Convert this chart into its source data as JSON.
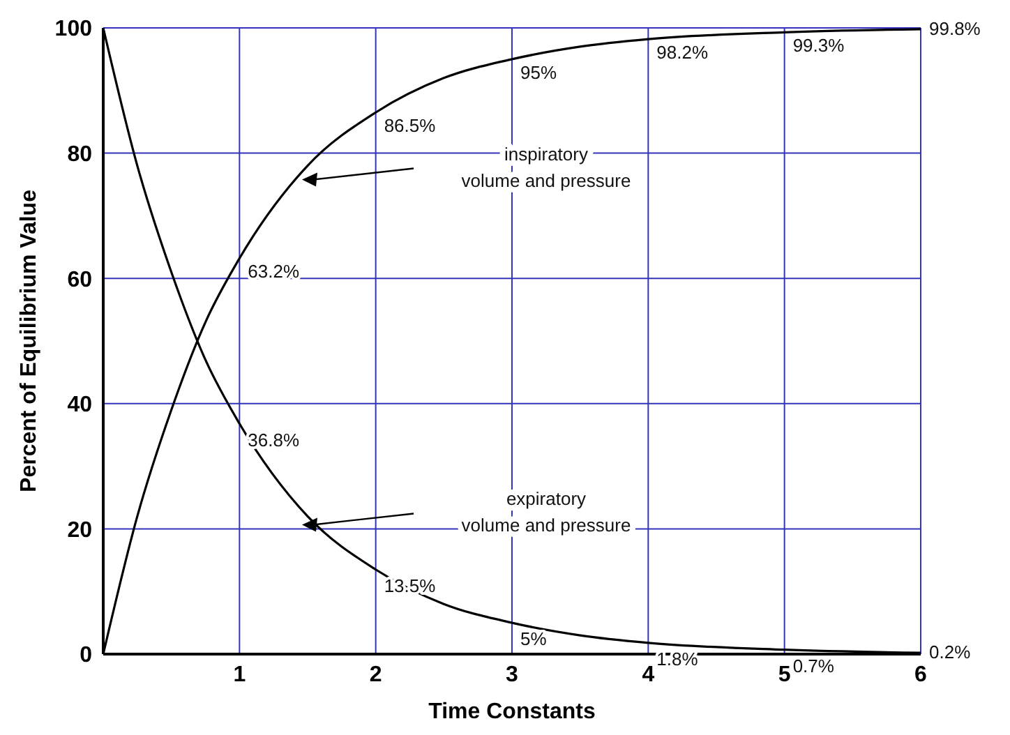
{
  "chart_data": {
    "type": "line",
    "xlabel": "Time Constants",
    "ylabel": "Percent of Equilibrium Value",
    "x": [
      0,
      0.25,
      0.5,
      0.75,
      1,
      1.5,
      2,
      2.5,
      3,
      3.5,
      4,
      5,
      6
    ],
    "series": [
      {
        "color": "#000000",
        "values": [
          0,
          22,
          39,
          53,
          63.2,
          78,
          86.5,
          92,
          95,
          97,
          98.2,
          99.3,
          99.8
        ],
        "value_labels": [
          null,
          null,
          null,
          null,
          "63.2%",
          null,
          "86.5%",
          null,
          "95%",
          null,
          "98.2%",
          "99.3%",
          "99.8%"
        ]
      },
      {
        "color": "#000000",
        "values": [
          100,
          78,
          61,
          47,
          36.8,
          22,
          13.5,
          8,
          5,
          3,
          1.8,
          0.7,
          0.2
        ],
        "value_labels": [
          null,
          null,
          null,
          null,
          "36.8%",
          null,
          "13.5%",
          null,
          "5%",
          null,
          "1.8%",
          "0.7%",
          "0.2%"
        ]
      }
    ],
    "annotations": [
      "inspiratory\nvolume and pressure",
      "expiratory\nvolume and pressure"
    ],
    "xlim": [
      0,
      6
    ],
    "xticks": [
      1,
      2,
      3,
      4,
      5,
      6
    ],
    "ylim": [
      0,
      100
    ],
    "yticks": [
      0,
      20,
      40,
      60,
      80,
      100
    ],
    "grid": true,
    "legend": false,
    "marker": "none",
    "line_style": "solid"
  }
}
